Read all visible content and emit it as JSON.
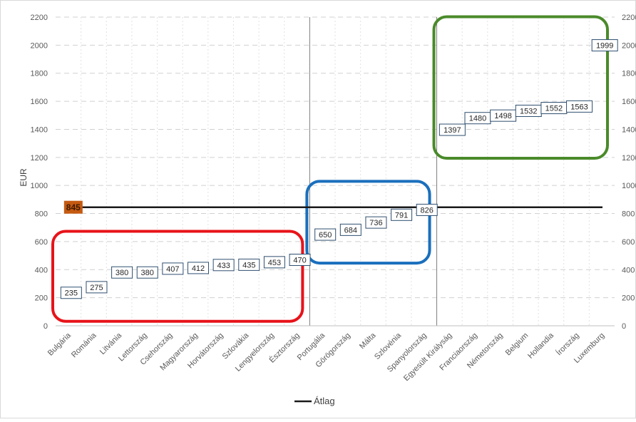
{
  "chart_data": {
    "type": "scatter",
    "ylabel": "EUR",
    "ylim": [
      0,
      2200
    ],
    "ytick_step": 200,
    "grid": "horizontal dashed, vertical dotted",
    "categories": [
      "Bulgária",
      "Románia",
      "Litvánia",
      "Lettország",
      "Csehország",
      "Magyarország",
      "Horvátország",
      "Szlovákia",
      "Lengyelország",
      "Észtország",
      "Portugália",
      "Görögország",
      "Málta",
      "Szlovénia",
      "Spanyolország",
      "Egyesült Királyság",
      "Franciaország",
      "Németország",
      "Belgium",
      "Hollandia",
      "Írország",
      "Luxemburg"
    ],
    "values": [
      235,
      275,
      380,
      380,
      407,
      412,
      433,
      435,
      453,
      470,
      650,
      684,
      736,
      791,
      826,
      1397,
      1480,
      1498,
      1532,
      1552,
      1563,
      1999
    ],
    "average": {
      "name": "Átlag",
      "value": 845,
      "label": "845"
    },
    "legend": {
      "position": "bottom",
      "label": "Átlag"
    },
    "groups": [
      {
        "color": "#e8131a",
        "from": 0,
        "to": 9
      },
      {
        "color": "#1a6fbd",
        "from": 10,
        "to": 14
      },
      {
        "color": "#4a8a2a",
        "from": 15,
        "to": 21
      }
    ],
    "colors": {
      "average_line": "#1a1a1a",
      "average_label_bg": "#c55a11",
      "value_box_border": "#2f4f6f"
    }
  }
}
